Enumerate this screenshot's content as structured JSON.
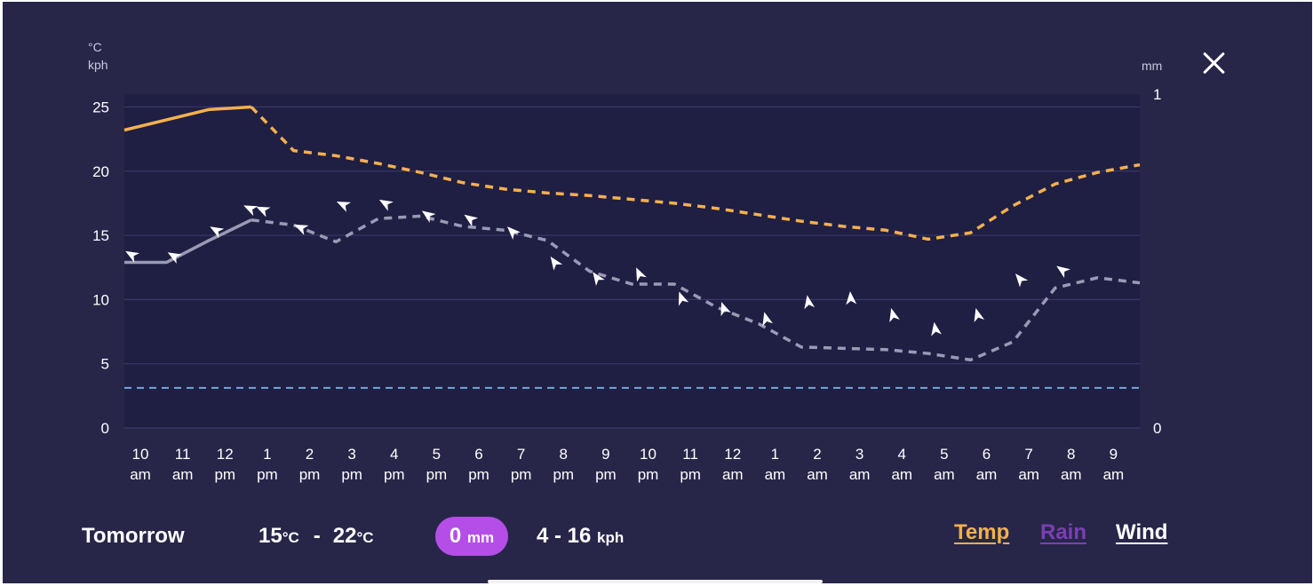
{
  "chart_data": {
    "type": "line",
    "left_units": [
      "°C",
      "kph"
    ],
    "right_unit": "mm",
    "ylim": [
      0,
      26
    ],
    "yticks": [
      "0",
      "5",
      "10",
      "15",
      "20",
      "25"
    ],
    "right_ylim": [
      0,
      1
    ],
    "right_yticks": [
      "0",
      "1"
    ],
    "x_count": 25,
    "x_labels": [
      [
        "10",
        "am"
      ],
      [
        "11",
        "am"
      ],
      [
        "12",
        "pm"
      ],
      [
        "1",
        "pm"
      ],
      [
        "2",
        "pm"
      ],
      [
        "3",
        "pm"
      ],
      [
        "4",
        "pm"
      ],
      [
        "5",
        "pm"
      ],
      [
        "6",
        "pm"
      ],
      [
        "7",
        "pm"
      ],
      [
        "8",
        "pm"
      ],
      [
        "9",
        "pm"
      ],
      [
        "10",
        "pm"
      ],
      [
        "11",
        "pm"
      ],
      [
        "12",
        "am"
      ],
      [
        "1",
        "am"
      ],
      [
        "2",
        "am"
      ],
      [
        "3",
        "am"
      ],
      [
        "4",
        "am"
      ],
      [
        "5",
        "am"
      ],
      [
        "6",
        "am"
      ],
      [
        "7",
        "am"
      ],
      [
        "8",
        "am"
      ],
      [
        "9",
        "am"
      ]
    ],
    "series": [
      {
        "key": "temp",
        "color": "#f4b04d",
        "solid_until": 3,
        "values": [
          23.2,
          24.0,
          24.8,
          25.0,
          21.6,
          21.2,
          20.6,
          19.9,
          19.1,
          18.6,
          18.3,
          18.1,
          17.8,
          17.5,
          17.1,
          16.6,
          16.1,
          15.7,
          15.4,
          14.7,
          15.2,
          17.3,
          19.0,
          19.9,
          20.5
        ]
      },
      {
        "key": "wind",
        "color": "#9a9ab5",
        "solid_until": 3,
        "values": [
          12.9,
          12.9,
          14.6,
          16.2,
          15.8,
          14.5,
          16.3,
          16.5,
          15.7,
          15.4,
          14.6,
          12.2,
          11.2,
          11.2,
          9.4,
          8.1,
          6.3,
          6.2,
          6.1,
          5.8,
          5.3,
          6.7,
          10.9,
          11.7,
          11.3
        ]
      },
      {
        "key": "rain",
        "color": "#74a7d9",
        "values_mm": [
          0.12,
          0.12,
          0.12,
          0.12,
          0.12,
          0.12,
          0.12,
          0.12,
          0.12,
          0.12,
          0.12,
          0.12,
          0.12,
          0.12,
          0.12,
          0.12,
          0.12,
          0.12,
          0.12,
          0.12,
          0.12,
          0.12,
          0.12,
          0.12,
          0.12
        ]
      }
    ],
    "wind_arrows": [
      {
        "x": 0,
        "y": 13.5,
        "dir_deg": 300
      },
      {
        "x": 1,
        "y": 13.4,
        "dir_deg": 300
      },
      {
        "x": 2,
        "y": 15.4,
        "dir_deg": 300
      },
      {
        "x": 2.8,
        "y": 17.1,
        "dir_deg": 295
      },
      {
        "x": 3.1,
        "y": 17.0,
        "dir_deg": 295
      },
      {
        "x": 4,
        "y": 15.6,
        "dir_deg": 295
      },
      {
        "x": 5,
        "y": 17.4,
        "dir_deg": 295
      },
      {
        "x": 6,
        "y": 17.5,
        "dir_deg": 300
      },
      {
        "x": 7,
        "y": 16.6,
        "dir_deg": 305
      },
      {
        "x": 8,
        "y": 16.3,
        "dir_deg": 305
      },
      {
        "x": 9,
        "y": 15.3,
        "dir_deg": 315
      },
      {
        "x": 10,
        "y": 12.9,
        "dir_deg": 325
      },
      {
        "x": 11,
        "y": 11.7,
        "dir_deg": 325
      },
      {
        "x": 12,
        "y": 12.0,
        "dir_deg": 335
      },
      {
        "x": 13,
        "y": 10.1,
        "dir_deg": 340
      },
      {
        "x": 14,
        "y": 9.3,
        "dir_deg": 340
      },
      {
        "x": 15,
        "y": 8.5,
        "dir_deg": 345
      },
      {
        "x": 16,
        "y": 9.8,
        "dir_deg": 350
      },
      {
        "x": 17,
        "y": 10.1,
        "dir_deg": 355
      },
      {
        "x": 18,
        "y": 8.8,
        "dir_deg": 345
      },
      {
        "x": 19,
        "y": 7.7,
        "dir_deg": 350
      },
      {
        "x": 20,
        "y": 8.8,
        "dir_deg": 345
      },
      {
        "x": 21,
        "y": 11.6,
        "dir_deg": 320
      },
      {
        "x": 22,
        "y": 12.3,
        "dir_deg": 305
      }
    ]
  },
  "summary": {
    "day": "Tomorrow",
    "temp_min": "15",
    "temp_max": "22",
    "temp_unit": "°C",
    "temp_sep": "-",
    "rain_value": "0",
    "rain_unit": "mm",
    "wind_range": "4 - 16",
    "wind_unit": "kph",
    "rain_pill_color": "#b44ee6"
  },
  "legend": {
    "temp": "Temp",
    "rain": "Rain",
    "wind": "Wind",
    "temp_color": "#f4b04d",
    "rain_color": "#7c3fb3",
    "wind_color": "#ffffff"
  },
  "close_icon": "close-icon"
}
